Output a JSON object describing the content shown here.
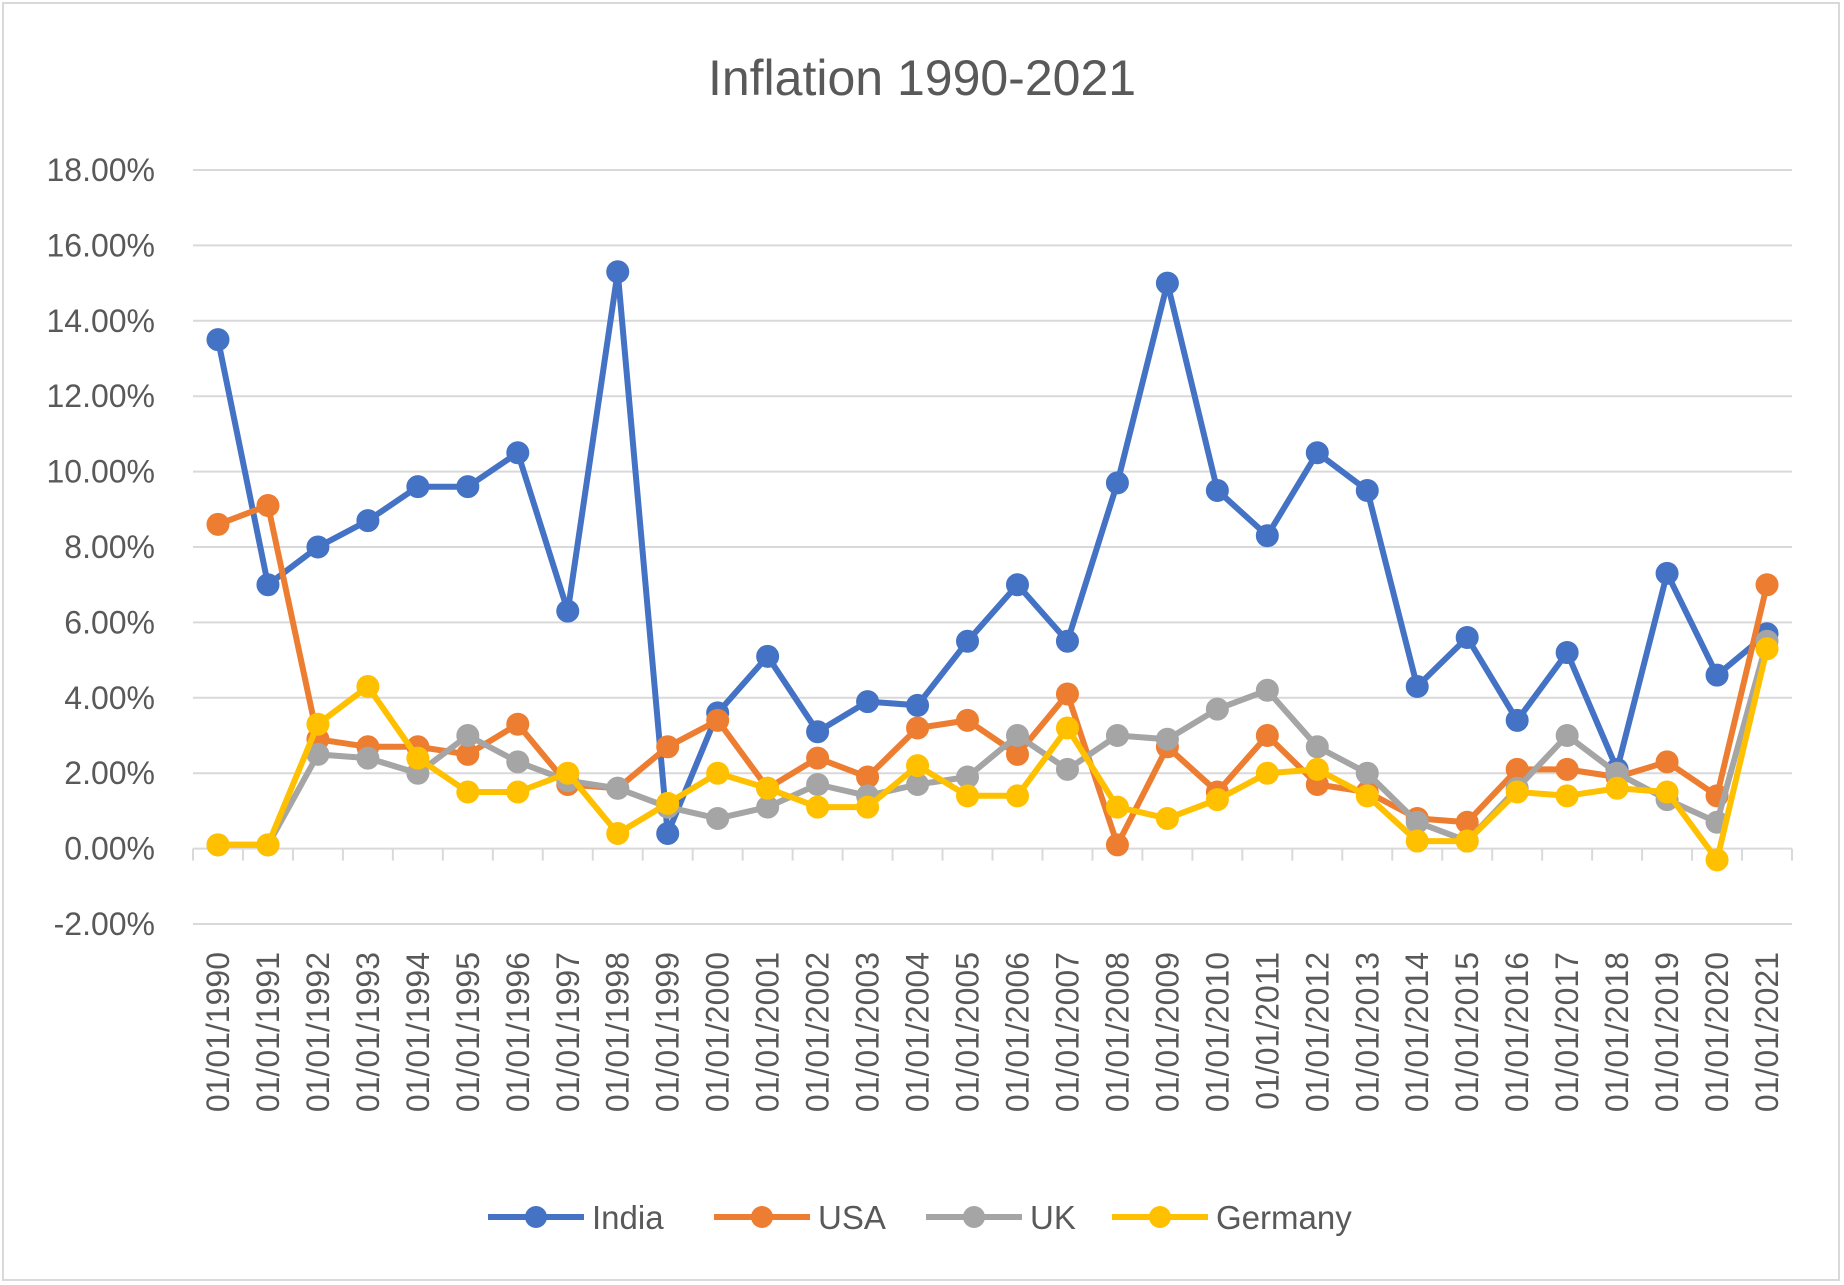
{
  "chart_data": {
    "type": "line",
    "title": "Inflation 1990-2021",
    "xlabel": "",
    "ylabel": "",
    "ylim": [
      -0.02,
      0.18
    ],
    "y_ticks": [
      -0.02,
      0.0,
      0.02,
      0.04,
      0.06,
      0.08,
      0.1,
      0.12,
      0.14,
      0.16,
      0.18
    ],
    "y_tick_labels": [
      "-2.00%",
      "0.00%",
      "2.00%",
      "4.00%",
      "6.00%",
      "8.00%",
      "10.00%",
      "12.00%",
      "14.00%",
      "16.00%",
      "18.00%"
    ],
    "grid": true,
    "legend_position": "bottom",
    "categories": [
      "01/01/1990",
      "01/01/1991",
      "01/01/1992",
      "01/01/1993",
      "01/01/1994",
      "01/01/1995",
      "01/01/1996",
      "01/01/1997",
      "01/01/1998",
      "01/01/1999",
      "01/01/2000",
      "01/01/2001",
      "01/01/2002",
      "01/01/2003",
      "01/01/2004",
      "01/01/2005",
      "01/01/2006",
      "01/01/2007",
      "01/01/2008",
      "01/01/2009",
      "01/01/2010",
      "01/01/2011",
      "01/01/2012",
      "01/01/2013",
      "01/01/2014",
      "01/01/2015",
      "01/01/2016",
      "01/01/2017",
      "01/01/2018",
      "01/01/2019",
      "01/01/2020",
      "01/01/2021"
    ],
    "series": [
      {
        "name": "India",
        "color": "#4472c4",
        "values": [
          0.135,
          0.07,
          0.08,
          0.087,
          0.096,
          0.096,
          0.105,
          0.063,
          0.153,
          0.004,
          0.036,
          0.051,
          0.031,
          0.039,
          0.038,
          0.055,
          0.07,
          0.055,
          0.097,
          0.15,
          0.095,
          0.083,
          0.105,
          0.095,
          0.043,
          0.056,
          0.034,
          0.052,
          0.021,
          0.073,
          0.046,
          0.057
        ]
      },
      {
        "name": "USA",
        "color": "#ed7d31",
        "values": [
          0.086,
          0.091,
          0.029,
          0.027,
          0.027,
          0.025,
          0.033,
          0.017,
          0.016,
          0.027,
          0.034,
          0.016,
          0.024,
          0.019,
          0.032,
          0.034,
          0.025,
          0.041,
          0.001,
          0.027,
          0.015,
          0.03,
          0.017,
          0.015,
          0.008,
          0.007,
          0.021,
          0.021,
          0.019,
          0.023,
          0.014,
          0.07
        ]
      },
      {
        "name": "UK",
        "color": "#a5a5a5",
        "values": [
          0.001,
          0.001,
          0.025,
          0.024,
          0.02,
          0.03,
          0.023,
          0.018,
          0.016,
          0.011,
          0.008,
          0.011,
          0.017,
          0.014,
          0.017,
          0.019,
          0.03,
          0.021,
          0.03,
          0.029,
          0.037,
          0.042,
          0.027,
          0.02,
          0.007,
          0.002,
          0.016,
          0.03,
          0.02,
          0.013,
          0.007,
          0.055
        ]
      },
      {
        "name": "Germany",
        "color": "#ffc000",
        "values": [
          0.001,
          0.001,
          0.033,
          0.043,
          0.024,
          0.015,
          0.015,
          0.02,
          0.004,
          0.012,
          0.02,
          0.016,
          0.011,
          0.011,
          0.022,
          0.014,
          0.014,
          0.032,
          0.011,
          0.008,
          0.013,
          0.02,
          0.021,
          0.014,
          0.002,
          0.002,
          0.015,
          0.014,
          0.016,
          0.015,
          -0.003,
          0.053
        ]
      }
    ]
  }
}
